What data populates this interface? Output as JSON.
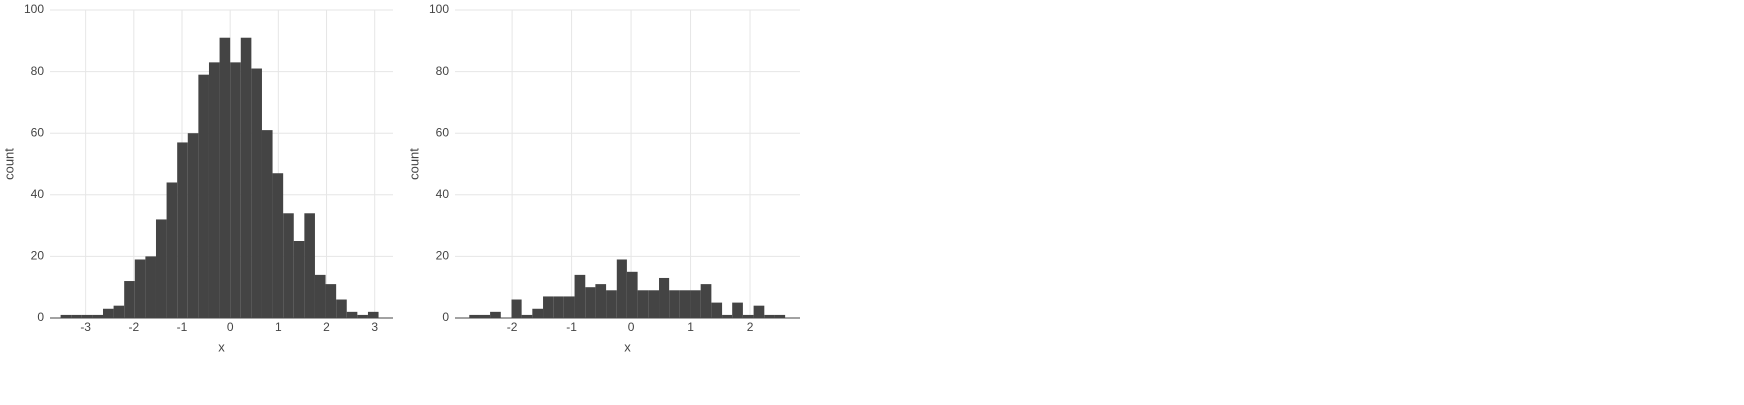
{
  "chart_data": [
    {
      "type": "histogram",
      "x_label": "x",
      "y_label": "count",
      "color": "#444444",
      "grid": true,
      "bins": [
        -3.52,
        -3.3,
        -3.08,
        -2.86,
        -2.64,
        -2.42,
        -2.2,
        -1.98,
        -1.76,
        -1.54,
        -1.32,
        -1.1,
        -0.88,
        -0.66,
        -0.44,
        -0.22,
        0,
        0.22,
        0.44,
        0.66,
        0.88,
        1.1,
        1.32,
        1.54,
        1.76,
        1.98,
        2.2,
        2.42,
        2.64,
        2.86,
        3.08
      ],
      "values": [
        1,
        1,
        1,
        1,
        3,
        4,
        12,
        19,
        20,
        32,
        44,
        57,
        60,
        79,
        83,
        91,
        83,
        91,
        81,
        61,
        47,
        34,
        25,
        34,
        14,
        11,
        6,
        2,
        1,
        2
      ],
      "xlim": [
        -3.74,
        3.38
      ],
      "ylim": [
        0,
        100
      ],
      "xticks": [
        -3,
        -2,
        -1,
        0,
        1,
        2,
        3
      ],
      "yticks": [
        0,
        20,
        40,
        60,
        80,
        100
      ]
    },
    {
      "type": "histogram",
      "x_label": "x",
      "y_label": "count",
      "color": "#444444",
      "grid": true,
      "bins": [
        -2.72,
        -2.54,
        -2.37,
        -2.19,
        -2.01,
        -1.84,
        -1.66,
        -1.48,
        -1.3,
        -1.13,
        -0.95,
        -0.77,
        -0.6,
        -0.42,
        -0.24,
        -0.07,
        0.11,
        0.29,
        0.47,
        0.64,
        0.82,
        1.0,
        1.17,
        1.35,
        1.53,
        1.7,
        1.88,
        2.06,
        2.24,
        2.41,
        2.59
      ],
      "values": [
        1,
        1,
        2,
        0,
        6,
        1,
        3,
        7,
        7,
        7,
        14,
        10,
        11,
        9,
        19,
        15,
        9,
        9,
        13,
        9,
        9,
        9,
        11,
        5,
        1,
        5,
        1,
        4,
        1,
        1
      ],
      "xlim": [
        -2.96,
        2.84
      ],
      "ylim": [
        0,
        100
      ],
      "xticks": [
        -2,
        -1,
        0,
        1,
        2
      ],
      "yticks": [
        0,
        20,
        40,
        60,
        80,
        100
      ]
    }
  ]
}
